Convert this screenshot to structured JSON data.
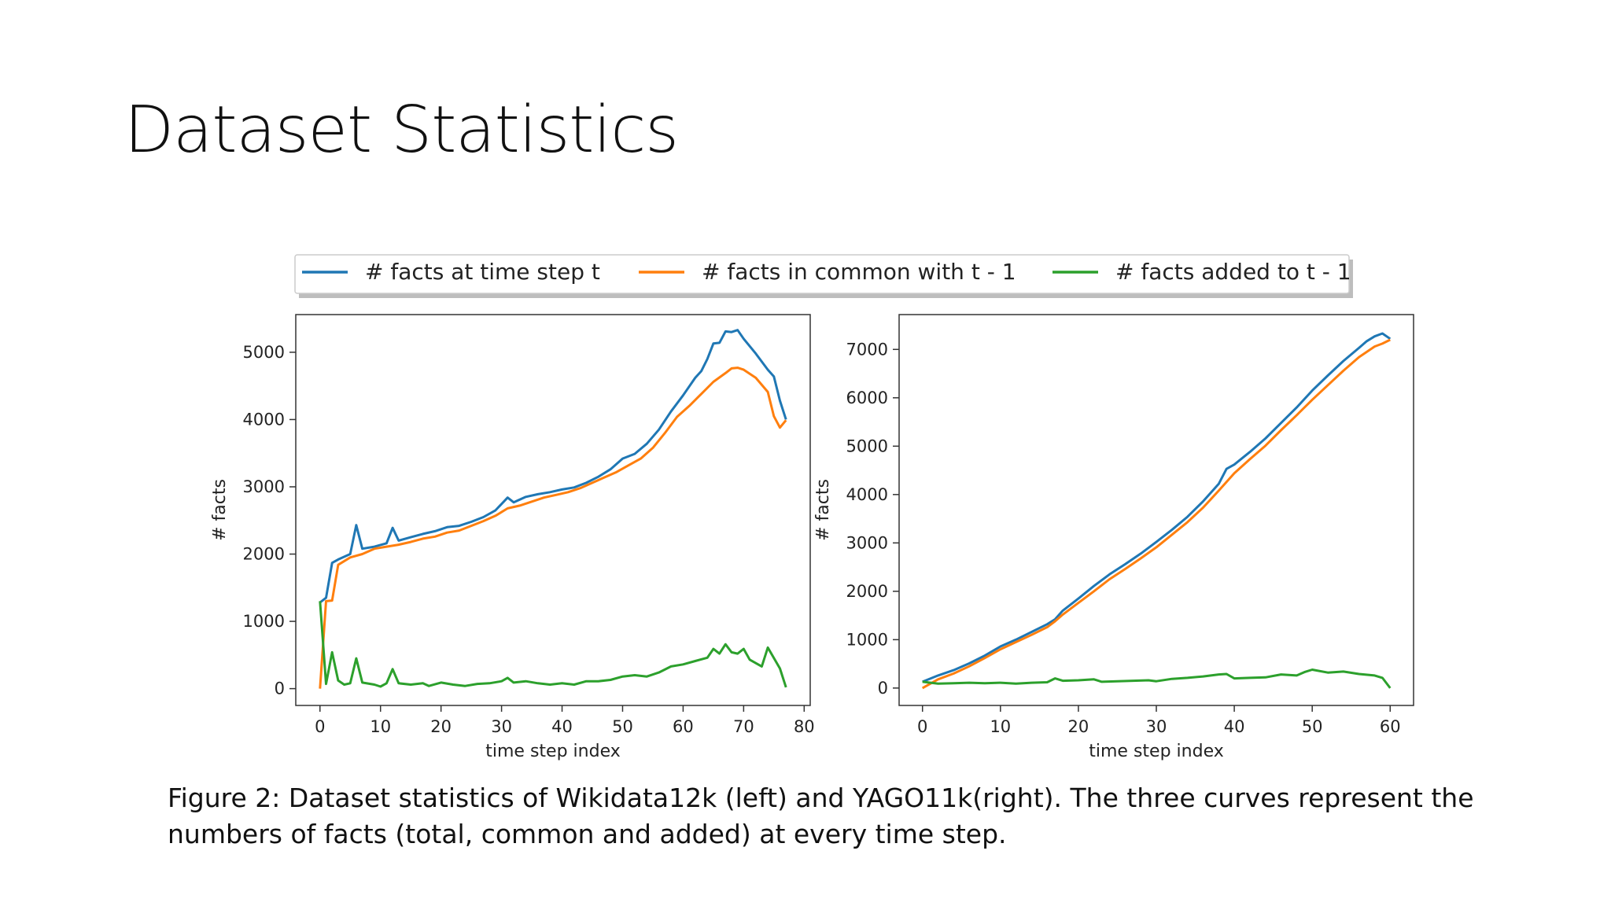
{
  "slide": {
    "title": "Dataset Statistics",
    "caption_line1": "Figure 2: Dataset statistics of Wikidata12k (left) and YAGO11k(right). The three curves represent the",
    "caption_line2": "numbers of facts (total, common and added) at every time step."
  },
  "legend": {
    "placement": "top-center",
    "entries": [
      {
        "label": "# facts at time step t",
        "color": "#1f77b4"
      },
      {
        "label": "# facts in common with t - 1",
        "color": "#ff7f0e"
      },
      {
        "label": "# facts added to t - 1",
        "color": "#2ca02c"
      }
    ]
  },
  "chart_data": [
    {
      "type": "line",
      "xlabel": "time step index",
      "ylabel": "# facts",
      "xlim": [
        -4,
        81
      ],
      "ylim": [
        -250,
        5560
      ],
      "xticks": [
        0,
        10,
        20,
        30,
        40,
        50,
        60,
        70,
        80
      ],
      "yticks": [
        0,
        1000,
        2000,
        3000,
        4000,
        5000
      ],
      "grid": false,
      "series": [
        {
          "name": "# facts at time step t",
          "color": "#1f77b4",
          "points": [
            [
              0,
              1280
            ],
            [
              1,
              1350
            ],
            [
              2,
              1870
            ],
            [
              3,
              1920
            ],
            [
              5,
              2000
            ],
            [
              6,
              2430
            ],
            [
              7,
              2080
            ],
            [
              9,
              2110
            ],
            [
              11,
              2160
            ],
            [
              12,
              2390
            ],
            [
              13,
              2200
            ],
            [
              15,
              2250
            ],
            [
              17,
              2300
            ],
            [
              19,
              2340
            ],
            [
              21,
              2400
            ],
            [
              23,
              2420
            ],
            [
              25,
              2480
            ],
            [
              27,
              2550
            ],
            [
              29,
              2650
            ],
            [
              31,
              2840
            ],
            [
              32,
              2770
            ],
            [
              34,
              2850
            ],
            [
              36,
              2890
            ],
            [
              38,
              2920
            ],
            [
              40,
              2960
            ],
            [
              42,
              2990
            ],
            [
              44,
              3060
            ],
            [
              46,
              3150
            ],
            [
              48,
              3260
            ],
            [
              50,
              3420
            ],
            [
              52,
              3490
            ],
            [
              54,
              3640
            ],
            [
              56,
              3850
            ],
            [
              58,
              4120
            ],
            [
              60,
              4360
            ],
            [
              62,
              4620
            ],
            [
              63,
              4720
            ],
            [
              64,
              4900
            ],
            [
              65,
              5130
            ],
            [
              66,
              5140
            ],
            [
              67,
              5310
            ],
            [
              68,
              5300
            ],
            [
              69,
              5330
            ],
            [
              70,
              5200
            ],
            [
              72,
              4980
            ],
            [
              74,
              4740
            ],
            [
              75,
              4640
            ],
            [
              76,
              4280
            ],
            [
              77,
              4000
            ]
          ]
        },
        {
          "name": "# facts in common with t - 1",
          "color": "#ff7f0e",
          "points": [
            [
              0,
              0
            ],
            [
              1,
              1300
            ],
            [
              2,
              1310
            ],
            [
              3,
              1840
            ],
            [
              5,
              1950
            ],
            [
              7,
              2000
            ],
            [
              9,
              2080
            ],
            [
              11,
              2110
            ],
            [
              13,
              2140
            ],
            [
              15,
              2180
            ],
            [
              17,
              2230
            ],
            [
              19,
              2260
            ],
            [
              21,
              2320
            ],
            [
              23,
              2350
            ],
            [
              25,
              2420
            ],
            [
              27,
              2490
            ],
            [
              29,
              2570
            ],
            [
              31,
              2680
            ],
            [
              33,
              2720
            ],
            [
              35,
              2780
            ],
            [
              37,
              2840
            ],
            [
              39,
              2880
            ],
            [
              41,
              2920
            ],
            [
              43,
              2980
            ],
            [
              45,
              3060
            ],
            [
              47,
              3140
            ],
            [
              49,
              3220
            ],
            [
              51,
              3320
            ],
            [
              53,
              3420
            ],
            [
              55,
              3580
            ],
            [
              57,
              3800
            ],
            [
              59,
              4040
            ],
            [
              61,
              4200
            ],
            [
              63,
              4380
            ],
            [
              65,
              4560
            ],
            [
              67,
              4690
            ],
            [
              68,
              4760
            ],
            [
              69,
              4770
            ],
            [
              70,
              4740
            ],
            [
              72,
              4620
            ],
            [
              74,
              4410
            ],
            [
              75,
              4050
            ],
            [
              76,
              3880
            ],
            [
              77,
              3990
            ]
          ]
        },
        {
          "name": "# facts added to t - 1",
          "color": "#2ca02c",
          "points": [
            [
              0,
              1300
            ],
            [
              1,
              70
            ],
            [
              2,
              540
            ],
            [
              3,
              120
            ],
            [
              4,
              60
            ],
            [
              5,
              80
            ],
            [
              6,
              450
            ],
            [
              7,
              90
            ],
            [
              9,
              60
            ],
            [
              10,
              30
            ],
            [
              11,
              80
            ],
            [
              12,
              290
            ],
            [
              13,
              80
            ],
            [
              15,
              60
            ],
            [
              17,
              80
            ],
            [
              18,
              40
            ],
            [
              20,
              90
            ],
            [
              22,
              60
            ],
            [
              24,
              40
            ],
            [
              26,
              70
            ],
            [
              28,
              80
            ],
            [
              30,
              110
            ],
            [
              31,
              160
            ],
            [
              32,
              90
            ],
            [
              34,
              110
            ],
            [
              36,
              80
            ],
            [
              38,
              60
            ],
            [
              40,
              80
            ],
            [
              42,
              60
            ],
            [
              44,
              110
            ],
            [
              46,
              110
            ],
            [
              48,
              130
            ],
            [
              50,
              180
            ],
            [
              52,
              200
            ],
            [
              54,
              180
            ],
            [
              56,
              240
            ],
            [
              58,
              330
            ],
            [
              60,
              360
            ],
            [
              62,
              410
            ],
            [
              64,
              460
            ],
            [
              65,
              590
            ],
            [
              66,
              520
            ],
            [
              67,
              660
            ],
            [
              68,
              540
            ],
            [
              69,
              520
            ],
            [
              70,
              590
            ],
            [
              71,
              430
            ],
            [
              73,
              330
            ],
            [
              74,
              610
            ],
            [
              76,
              300
            ],
            [
              77,
              20
            ]
          ]
        }
      ]
    },
    {
      "type": "line",
      "xlabel": "time step index",
      "ylabel": "# facts",
      "xlim": [
        -3,
        63
      ],
      "ylim": [
        -360,
        7720
      ],
      "xticks": [
        0,
        10,
        20,
        30,
        40,
        50,
        60
      ],
      "yticks": [
        0,
        1000,
        2000,
        3000,
        4000,
        5000,
        6000,
        7000
      ],
      "grid": false,
      "series": [
        {
          "name": "# facts at time step t",
          "color": "#1f77b4",
          "points": [
            [
              0,
              130
            ],
            [
              2,
              260
            ],
            [
              4,
              370
            ],
            [
              6,
              510
            ],
            [
              8,
              670
            ],
            [
              10,
              860
            ],
            [
              12,
              1000
            ],
            [
              14,
              1160
            ],
            [
              16,
              1320
            ],
            [
              17,
              1420
            ],
            [
              18,
              1600
            ],
            [
              20,
              1850
            ],
            [
              22,
              2110
            ],
            [
              24,
              2350
            ],
            [
              26,
              2560
            ],
            [
              28,
              2780
            ],
            [
              30,
              3020
            ],
            [
              32,
              3270
            ],
            [
              34,
              3540
            ],
            [
              36,
              3860
            ],
            [
              38,
              4220
            ],
            [
              39,
              4530
            ],
            [
              40,
              4620
            ],
            [
              42,
              4880
            ],
            [
              44,
              5160
            ],
            [
              46,
              5480
            ],
            [
              48,
              5800
            ],
            [
              50,
              6150
            ],
            [
              52,
              6460
            ],
            [
              54,
              6760
            ],
            [
              56,
              7030
            ],
            [
              57,
              7170
            ],
            [
              58,
              7270
            ],
            [
              59,
              7330
            ],
            [
              60,
              7220
            ]
          ]
        },
        {
          "name": "# facts in common with t - 1",
          "color": "#ff7f0e",
          "points": [
            [
              0,
              0
            ],
            [
              2,
              180
            ],
            [
              4,
              300
            ],
            [
              6,
              450
            ],
            [
              8,
              620
            ],
            [
              10,
              800
            ],
            [
              12,
              950
            ],
            [
              14,
              1100
            ],
            [
              16,
              1260
            ],
            [
              17,
              1380
            ],
            [
              18,
              1520
            ],
            [
              20,
              1760
            ],
            [
              22,
              2000
            ],
            [
              24,
              2250
            ],
            [
              26,
              2460
            ],
            [
              28,
              2680
            ],
            [
              30,
              2910
            ],
            [
              32,
              3170
            ],
            [
              34,
              3430
            ],
            [
              36,
              3730
            ],
            [
              38,
              4080
            ],
            [
              40,
              4440
            ],
            [
              42,
              4730
            ],
            [
              44,
              5010
            ],
            [
              46,
              5330
            ],
            [
              48,
              5640
            ],
            [
              50,
              5960
            ],
            [
              52,
              6260
            ],
            [
              54,
              6560
            ],
            [
              56,
              6840
            ],
            [
              58,
              7060
            ],
            [
              59,
              7120
            ],
            [
              60,
              7200
            ]
          ]
        },
        {
          "name": "# facts added to t - 1",
          "color": "#2ca02c",
          "points": [
            [
              0,
              130
            ],
            [
              2,
              90
            ],
            [
              4,
              100
            ],
            [
              6,
              110
            ],
            [
              8,
              100
            ],
            [
              10,
              110
            ],
            [
              12,
              90
            ],
            [
              14,
              110
            ],
            [
              16,
              120
            ],
            [
              17,
              200
            ],
            [
              18,
              150
            ],
            [
              20,
              160
            ],
            [
              22,
              180
            ],
            [
              23,
              130
            ],
            [
              25,
              140
            ],
            [
              27,
              150
            ],
            [
              29,
              160
            ],
            [
              30,
              140
            ],
            [
              32,
              190
            ],
            [
              34,
              210
            ],
            [
              36,
              240
            ],
            [
              38,
              280
            ],
            [
              39,
              290
            ],
            [
              40,
              200
            ],
            [
              42,
              210
            ],
            [
              44,
              220
            ],
            [
              46,
              280
            ],
            [
              48,
              260
            ],
            [
              49,
              330
            ],
            [
              50,
              380
            ],
            [
              52,
              320
            ],
            [
              54,
              340
            ],
            [
              56,
              290
            ],
            [
              58,
              260
            ],
            [
              59,
              210
            ],
            [
              60,
              0
            ]
          ]
        }
      ]
    }
  ]
}
